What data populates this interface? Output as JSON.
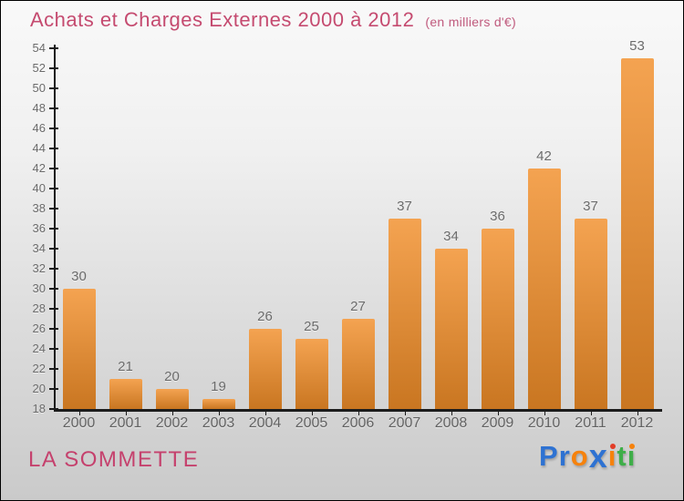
{
  "header": {
    "title": "Achats et Charges Externes 2000 à 2012",
    "subtitle": "(en milliers d'€)",
    "title_color": "#c54b70",
    "subtitle_color": "#c05a7d"
  },
  "chart_data": {
    "type": "bar",
    "title": "Achats et Charges Externes 2000 à 2012",
    "subtitle": "(en milliers d'€)",
    "categories": [
      "2000",
      "2001",
      "2002",
      "2003",
      "2004",
      "2005",
      "2006",
      "2007",
      "2008",
      "2009",
      "2010",
      "2011",
      "2012"
    ],
    "values": [
      30,
      21,
      20,
      19,
      26,
      25,
      27,
      37,
      34,
      36,
      42,
      37,
      53
    ],
    "xlabel": "",
    "ylabel": "",
    "ylim": [
      18,
      54
    ],
    "ytick_step": 2,
    "grid": false,
    "legend": null,
    "colors": {
      "bar_top": "#f4a351",
      "bar_bottom": "#c97621",
      "axis": "#1c1c1c",
      "tick_label": "#6b6b6b",
      "value_label": "#6b6b6b"
    }
  },
  "footer": {
    "entity": "LA SOMMETTE",
    "entity_color": "#c5416d",
    "logo_letters": [
      {
        "ch": "P",
        "color": "#2e72d2"
      },
      {
        "ch": "r",
        "color": "#2e72d2"
      },
      {
        "ch": "o",
        "color": "#f6820c"
      },
      {
        "ch": "x",
        "color": "#2e72d2",
        "big": true
      },
      {
        "ch": "ı",
        "color": "#f6820c",
        "dot": "#e23d28"
      },
      {
        "ch": "t",
        "color": "#3fae49"
      },
      {
        "ch": "ı",
        "color": "#3fae49",
        "dot": "#f6820c"
      }
    ]
  }
}
